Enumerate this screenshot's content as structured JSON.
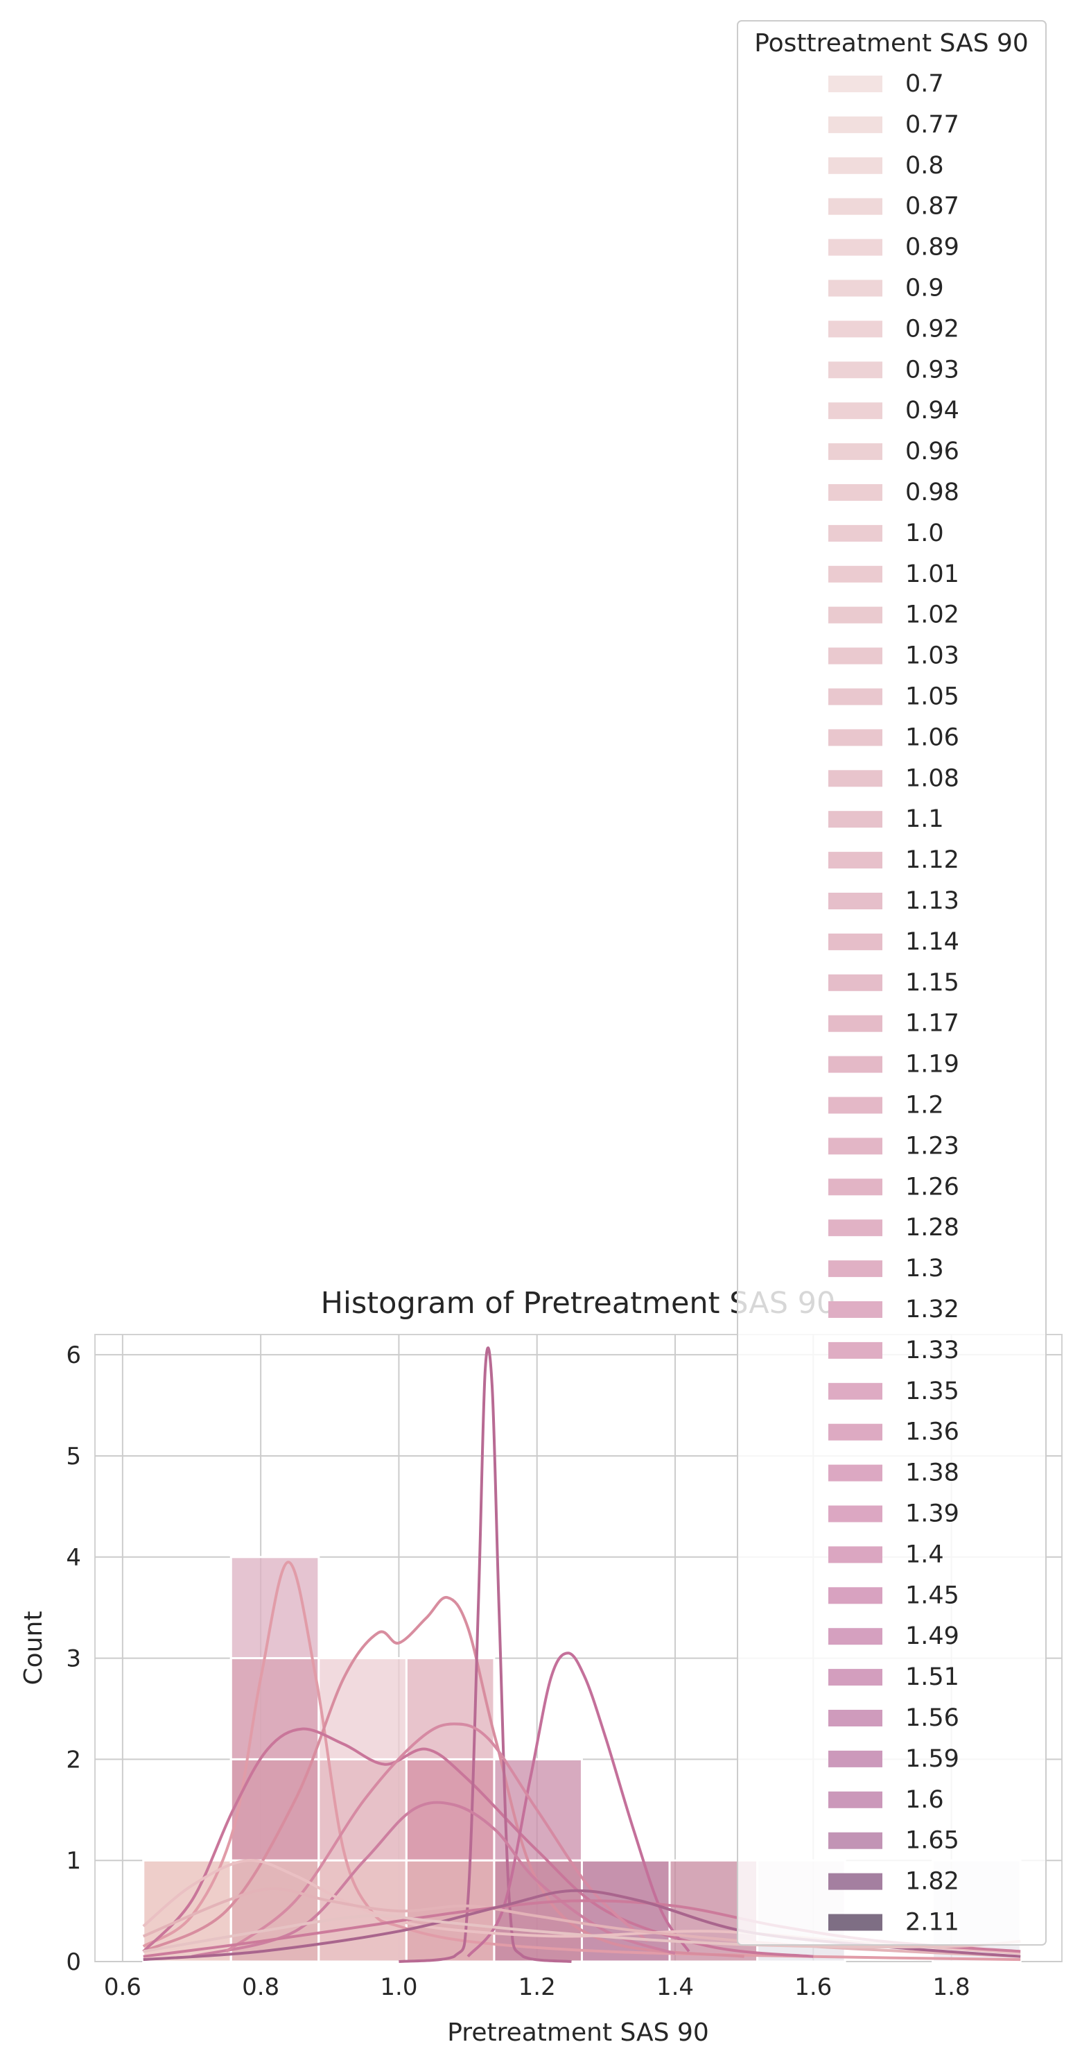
{
  "chart_data": {
    "type": "bar",
    "title": "Histogram of Pretreatment SAS 90",
    "xlabel": "Pretreatment SAS 90",
    "ylabel": "Count",
    "xlim": [
      0.56,
      1.96
    ],
    "ylim": [
      0,
      6.2
    ],
    "xticks": [
      "0.6",
      "0.8",
      "1.0",
      "1.2",
      "1.4",
      "1.6",
      "1.8"
    ],
    "yticks": [
      "0",
      "1",
      "2",
      "3",
      "4",
      "5",
      "6"
    ],
    "grid": true,
    "bin_edges": [
      0.63,
      0.757,
      0.884,
      1.011,
      1.138,
      1.265,
      1.392,
      1.519,
      1.646,
      1.773,
      1.9
    ],
    "bars": [
      {
        "x0": 0.63,
        "x1": 0.757,
        "value": 1,
        "color": "#e8bdb8"
      },
      {
        "x0": 0.757,
        "x1": 0.884,
        "value": 4,
        "color": "#dcb0c2"
      },
      {
        "x0": 0.757,
        "x1": 0.884,
        "value": 3,
        "color": "#d8a4b4"
      },
      {
        "x0": 0.757,
        "x1": 0.884,
        "value": 2,
        "color": "#d59bac"
      },
      {
        "x0": 0.757,
        "x1": 0.884,
        "value": 1,
        "color": "#e6bdbc"
      },
      {
        "x0": 0.884,
        "x1": 1.011,
        "value": 3,
        "color": "#ecced3"
      },
      {
        "x0": 0.884,
        "x1": 1.011,
        "value": 2,
        "color": "#e3b8c0"
      },
      {
        "x0": 0.884,
        "x1": 1.011,
        "value": 1,
        "color": "#e9c3c4"
      },
      {
        "x0": 1.011,
        "x1": 1.138,
        "value": 3,
        "color": "#e0b0bb"
      },
      {
        "x0": 1.011,
        "x1": 1.138,
        "value": 2,
        "color": "#d592a5"
      },
      {
        "x0": 1.011,
        "x1": 1.138,
        "value": 1,
        "color": "#e2b3b6"
      },
      {
        "x0": 1.138,
        "x1": 1.265,
        "value": 2,
        "color": "#c98ea9"
      },
      {
        "x0": 1.138,
        "x1": 1.265,
        "value": 1,
        "color": "#c5879e"
      },
      {
        "x0": 1.265,
        "x1": 1.392,
        "value": 1,
        "color": "#b36e91"
      },
      {
        "x0": 1.392,
        "x1": 1.519,
        "value": 1,
        "color": "#c78a9f"
      },
      {
        "x0": 1.519,
        "x1": 1.646,
        "value": 1,
        "color": "#e5e3ea"
      },
      {
        "x0": 1.773,
        "x1": 1.9,
        "value": 1,
        "color": "#e9e7ec"
      }
    ],
    "kde_curves": [
      {
        "color": "#e19ca8",
        "points": [
          [
            0.63,
            0.15
          ],
          [
            0.7,
            0.45
          ],
          [
            0.76,
            1.3
          ],
          [
            0.8,
            2.8
          ],
          [
            0.84,
            3.95
          ],
          [
            0.88,
            2.8
          ],
          [
            0.92,
            1.1
          ],
          [
            0.96,
            0.5
          ],
          [
            1.0,
            0.35
          ],
          [
            1.1,
            0.2
          ],
          [
            1.3,
            0.1
          ],
          [
            1.6,
            0.05
          ],
          [
            1.9,
            0.02
          ]
        ]
      },
      {
        "color": "#d88d9f",
        "points": [
          [
            0.63,
            0.1
          ],
          [
            0.75,
            0.5
          ],
          [
            0.85,
            1.6
          ],
          [
            0.92,
            2.8
          ],
          [
            0.97,
            3.25
          ],
          [
            1.0,
            3.15
          ],
          [
            1.04,
            3.4
          ],
          [
            1.07,
            3.6
          ],
          [
            1.1,
            3.3
          ],
          [
            1.14,
            2.2
          ],
          [
            1.2,
            0.8
          ],
          [
            1.3,
            0.2
          ],
          [
            1.5,
            0.05
          ]
        ]
      },
      {
        "color": "#c9769a",
        "points": [
          [
            0.63,
            0.1
          ],
          [
            0.7,
            0.6
          ],
          [
            0.76,
            1.5
          ],
          [
            0.81,
            2.1
          ],
          [
            0.86,
            2.3
          ],
          [
            0.92,
            2.15
          ],
          [
            0.98,
            1.95
          ],
          [
            1.04,
            2.1
          ],
          [
            1.1,
            1.8
          ],
          [
            1.2,
            1.1
          ],
          [
            1.3,
            0.5
          ],
          [
            1.45,
            0.15
          ],
          [
            1.6,
            0.05
          ]
        ]
      },
      {
        "color": "#b86a93",
        "points": [
          [
            1.0,
            0.0
          ],
          [
            1.08,
            0.05
          ],
          [
            1.1,
            0.6
          ],
          [
            1.115,
            3.5
          ],
          [
            1.125,
            5.85
          ],
          [
            1.135,
            5.7
          ],
          [
            1.145,
            3.5
          ],
          [
            1.16,
            0.6
          ],
          [
            1.18,
            0.05
          ],
          [
            1.25,
            0.0
          ]
        ]
      },
      {
        "color": "#c4709a",
        "points": [
          [
            1.1,
            0.05
          ],
          [
            1.15,
            0.5
          ],
          [
            1.19,
            1.8
          ],
          [
            1.22,
            2.8
          ],
          [
            1.245,
            3.05
          ],
          [
            1.27,
            2.8
          ],
          [
            1.3,
            2.2
          ],
          [
            1.34,
            1.3
          ],
          [
            1.38,
            0.5
          ],
          [
            1.42,
            0.1
          ]
        ]
      },
      {
        "color": "#cd7fa0",
        "points": [
          [
            0.7,
            0.05
          ],
          [
            0.85,
            0.3
          ],
          [
            0.95,
            1.0
          ],
          [
            1.02,
            1.5
          ],
          [
            1.08,
            1.55
          ],
          [
            1.14,
            1.3
          ],
          [
            1.2,
            0.8
          ],
          [
            1.3,
            0.3
          ],
          [
            1.4,
            0.08
          ]
        ]
      },
      {
        "color": "#d68aa3",
        "points": [
          [
            0.75,
            0.1
          ],
          [
            0.85,
            0.6
          ],
          [
            0.95,
            1.6
          ],
          [
            1.03,
            2.2
          ],
          [
            1.08,
            2.35
          ],
          [
            1.13,
            2.2
          ],
          [
            1.2,
            1.5
          ],
          [
            1.28,
            0.7
          ],
          [
            1.36,
            0.2
          ]
        ]
      },
      {
        "color": "#eac0c3",
        "points": [
          [
            0.63,
            0.35
          ],
          [
            0.7,
            0.75
          ],
          [
            0.78,
            1.0
          ],
          [
            0.85,
            0.85
          ],
          [
            0.92,
            0.6
          ],
          [
            1.0,
            0.4
          ],
          [
            1.1,
            0.3
          ],
          [
            1.25,
            0.25
          ],
          [
            1.45,
            0.3
          ],
          [
            1.65,
            0.2
          ],
          [
            1.9,
            0.08
          ]
        ]
      },
      {
        "color": "#e3b3b8",
        "points": [
          [
            0.63,
            0.25
          ],
          [
            0.75,
            0.6
          ],
          [
            0.82,
            0.72
          ],
          [
            0.9,
            0.6
          ],
          [
            1.0,
            0.5
          ],
          [
            1.1,
            0.55
          ],
          [
            1.2,
            0.45
          ],
          [
            1.35,
            0.3
          ],
          [
            1.6,
            0.15
          ],
          [
            1.9,
            0.05
          ]
        ]
      },
      {
        "color": "#cc7b9b",
        "points": [
          [
            0.63,
            0.05
          ],
          [
            0.8,
            0.2
          ],
          [
            0.95,
            0.35
          ],
          [
            1.1,
            0.5
          ],
          [
            1.25,
            0.6
          ],
          [
            1.4,
            0.55
          ],
          [
            1.55,
            0.35
          ],
          [
            1.7,
            0.2
          ],
          [
            1.9,
            0.1
          ]
        ]
      },
      {
        "color": "#a9658d",
        "points": [
          [
            0.63,
            0.02
          ],
          [
            0.8,
            0.1
          ],
          [
            1.0,
            0.3
          ],
          [
            1.15,
            0.55
          ],
          [
            1.25,
            0.7
          ],
          [
            1.35,
            0.6
          ],
          [
            1.5,
            0.3
          ],
          [
            1.7,
            0.15
          ],
          [
            1.9,
            0.05
          ]
        ]
      },
      {
        "color": "#e6c3c4",
        "points": [
          [
            0.63,
            0.1
          ],
          [
            0.8,
            0.3
          ],
          [
            0.95,
            0.45
          ],
          [
            1.05,
            0.4
          ],
          [
            1.2,
            0.3
          ],
          [
            1.4,
            0.2
          ],
          [
            1.6,
            0.15
          ],
          [
            1.8,
            0.15
          ],
          [
            1.9,
            0.2
          ]
        ]
      }
    ],
    "legend": {
      "title": "Posttreatment SAS 90",
      "placement": "top-right",
      "entries": [
        {
          "label": "0.7",
          "color": "#f3e3e2"
        },
        {
          "label": "0.77",
          "color": "#f2dfde"
        },
        {
          "label": "0.8",
          "color": "#f1dcdc"
        },
        {
          "label": "0.87",
          "color": "#efd8d9"
        },
        {
          "label": "0.89",
          "color": "#efd6d8"
        },
        {
          "label": "0.9",
          "color": "#eed5d7"
        },
        {
          "label": "0.92",
          "color": "#eed3d6"
        },
        {
          "label": "0.93",
          "color": "#edd2d5"
        },
        {
          "label": "0.94",
          "color": "#edd1d4"
        },
        {
          "label": "0.96",
          "color": "#ecd0d3"
        },
        {
          "label": "0.98",
          "color": "#ecced2"
        },
        {
          "label": "1.0",
          "color": "#ebccd1"
        },
        {
          "label": "1.01",
          "color": "#ebcbd0"
        },
        {
          "label": "1.02",
          "color": "#eacacf"
        },
        {
          "label": "1.03",
          "color": "#eac9cf"
        },
        {
          "label": "1.05",
          "color": "#e9c7ce"
        },
        {
          "label": "1.06",
          "color": "#e9c6cd"
        },
        {
          "label": "1.08",
          "color": "#e8c4cc"
        },
        {
          "label": "1.1",
          "color": "#e7c2cb"
        },
        {
          "label": "1.12",
          "color": "#e7c0ca"
        },
        {
          "label": "1.13",
          "color": "#e6bfca"
        },
        {
          "label": "1.14",
          "color": "#e6bec9"
        },
        {
          "label": "1.15",
          "color": "#e5bdc9"
        },
        {
          "label": "1.17",
          "color": "#e5bbc8"
        },
        {
          "label": "1.19",
          "color": "#e4b9c7"
        },
        {
          "label": "1.2",
          "color": "#e4b8c7"
        },
        {
          "label": "1.23",
          "color": "#e3b6c6"
        },
        {
          "label": "1.26",
          "color": "#e2b4c5"
        },
        {
          "label": "1.28",
          "color": "#e1b2c5"
        },
        {
          "label": "1.3",
          "color": "#e0b0c4"
        },
        {
          "label": "1.32",
          "color": "#dfaec4"
        },
        {
          "label": "1.33",
          "color": "#dfadc3"
        },
        {
          "label": "1.35",
          "color": "#deabc3"
        },
        {
          "label": "1.36",
          "color": "#ddaac2"
        },
        {
          "label": "1.38",
          "color": "#dca8c2"
        },
        {
          "label": "1.39",
          "color": "#dca7c2"
        },
        {
          "label": "1.4",
          "color": "#dba6c1"
        },
        {
          "label": "1.45",
          "color": "#d8a2c0"
        },
        {
          "label": "1.49",
          "color": "#d5a0bf"
        },
        {
          "label": "1.51",
          "color": "#d39ebe"
        },
        {
          "label": "1.56",
          "color": "#cf9bbc"
        },
        {
          "label": "1.59",
          "color": "#cc99bb"
        },
        {
          "label": "1.6",
          "color": "#cb98ba"
        },
        {
          "label": "1.65",
          "color": "#c294b5"
        },
        {
          "label": "1.82",
          "color": "#a47fa0"
        },
        {
          "label": "2.11",
          "color": "#7e6e84"
        }
      ]
    }
  }
}
